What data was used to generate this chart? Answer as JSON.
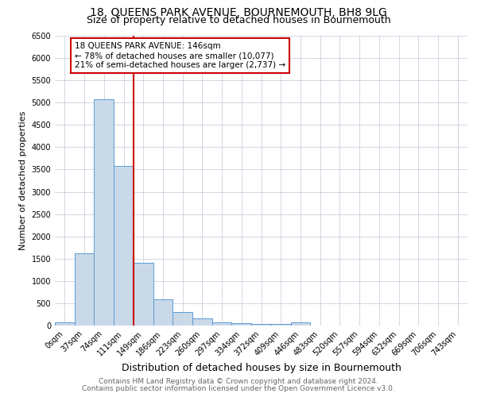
{
  "title": "18, QUEENS PARK AVENUE, BOURNEMOUTH, BH8 9LG",
  "subtitle": "Size of property relative to detached houses in Bournemouth",
  "xlabel": "Distribution of detached houses by size in Bournemouth",
  "ylabel": "Number of detached properties",
  "bar_labels": [
    "0sqm",
    "37sqm",
    "74sqm",
    "111sqm",
    "149sqm",
    "186sqm",
    "223sqm",
    "260sqm",
    "297sqm",
    "334sqm",
    "372sqm",
    "409sqm",
    "446sqm",
    "483sqm",
    "520sqm",
    "557sqm",
    "594sqm",
    "632sqm",
    "669sqm",
    "706sqm",
    "743sqm"
  ],
  "bar_values": [
    75,
    1620,
    5080,
    3580,
    1400,
    580,
    295,
    155,
    80,
    55,
    40,
    30,
    65,
    0,
    0,
    0,
    0,
    0,
    0,
    0,
    0
  ],
  "bar_color": "#c9d9e8",
  "bar_edge_color": "#5b9bd5",
  "property_line_x": 3.5,
  "property_line_color": "#cc0000",
  "annotation_text": "18 QUEENS PARK AVENUE: 146sqm\n← 78% of detached houses are smaller (10,077)\n21% of semi-detached houses are larger (2,737) →",
  "annotation_box_color": "#cc0000",
  "ylim": [
    0,
    6500
  ],
  "yticks": [
    0,
    500,
    1000,
    1500,
    2000,
    2500,
    3000,
    3500,
    4000,
    4500,
    5000,
    5500,
    6000,
    6500
  ],
  "footer_line1": "Contains HM Land Registry data © Crown copyright and database right 2024.",
  "footer_line2": "Contains public sector information licensed under the Open Government Licence v3.0.",
  "title_fontsize": 10,
  "subtitle_fontsize": 9,
  "xlabel_fontsize": 9,
  "ylabel_fontsize": 8,
  "tick_fontsize": 7,
  "annotation_fontsize": 7.5,
  "footer_fontsize": 6.5
}
